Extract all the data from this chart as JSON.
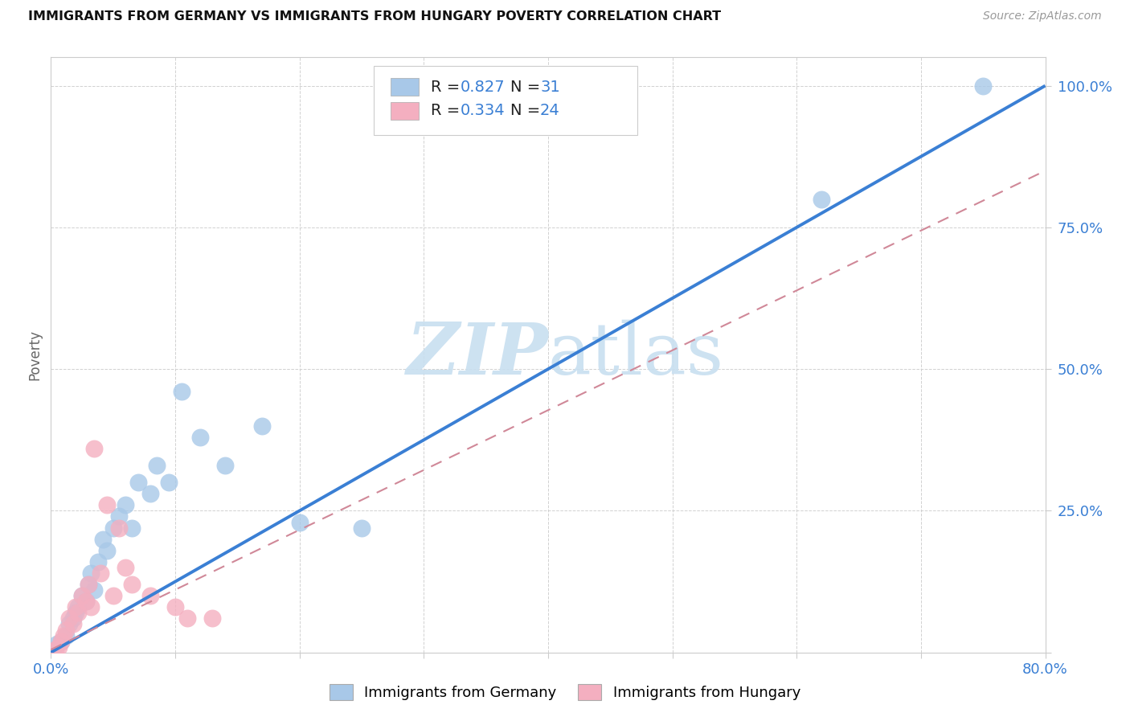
{
  "title": "IMMIGRANTS FROM GERMANY VS IMMIGRANTS FROM HUNGARY POVERTY CORRELATION CHART",
  "source": "Source: ZipAtlas.com",
  "ylabel": "Poverty",
  "xlim": [
    0.0,
    0.8
  ],
  "ylim": [
    0.0,
    1.05
  ],
  "xtick_positions": [
    0.0,
    0.1,
    0.2,
    0.3,
    0.4,
    0.5,
    0.6,
    0.7,
    0.8
  ],
  "xticklabels": [
    "0.0%",
    "",
    "",
    "",
    "",
    "",
    "",
    "",
    "80.0%"
  ],
  "ytick_positions": [
    0.0,
    0.25,
    0.5,
    0.75,
    1.0
  ],
  "yticklabels": [
    "",
    "25.0%",
    "50.0%",
    "75.0%",
    "100.0%"
  ],
  "germany_scatter_color": "#a8c8e8",
  "hungary_scatter_color": "#f4afc0",
  "germany_line_color": "#3a7fd4",
  "hungary_line_color": "#d08898",
  "legend_text_color": "#3a7fd4",
  "tick_color": "#3a7fd4",
  "grid_color": "#cccccc",
  "watermark_zip_color": "#c8dff0",
  "watermark_atlas_color": "#c8dff0",
  "germany_R": "0.827",
  "germany_N": "31",
  "hungary_R": "0.334",
  "hungary_N": "24",
  "germany_label": "Immigrants from Germany",
  "hungary_label": "Immigrants from Hungary",
  "germany_line_x": [
    0.0,
    0.8
  ],
  "germany_line_y": [
    0.0,
    1.0
  ],
  "hungary_line_x": [
    0.0,
    0.8
  ],
  "hungary_line_y": [
    0.005,
    0.85
  ],
  "germany_points": [
    [
      0.005,
      0.015
    ],
    [
      0.008,
      0.02
    ],
    [
      0.012,
      0.03
    ],
    [
      0.015,
      0.05
    ],
    [
      0.018,
      0.06
    ],
    [
      0.02,
      0.07
    ],
    [
      0.022,
      0.08
    ],
    [
      0.025,
      0.1
    ],
    [
      0.028,
      0.09
    ],
    [
      0.03,
      0.12
    ],
    [
      0.032,
      0.14
    ],
    [
      0.035,
      0.11
    ],
    [
      0.038,
      0.16
    ],
    [
      0.042,
      0.2
    ],
    [
      0.045,
      0.18
    ],
    [
      0.05,
      0.22
    ],
    [
      0.055,
      0.24
    ],
    [
      0.06,
      0.26
    ],
    [
      0.065,
      0.22
    ],
    [
      0.07,
      0.3
    ],
    [
      0.08,
      0.28
    ],
    [
      0.085,
      0.33
    ],
    [
      0.095,
      0.3
    ],
    [
      0.105,
      0.46
    ],
    [
      0.12,
      0.38
    ],
    [
      0.14,
      0.33
    ],
    [
      0.17,
      0.4
    ],
    [
      0.2,
      0.23
    ],
    [
      0.25,
      0.22
    ],
    [
      0.62,
      0.8
    ],
    [
      0.75,
      1.0
    ]
  ],
  "hungary_points": [
    [
      0.004,
      0.005
    ],
    [
      0.006,
      0.01
    ],
    [
      0.008,
      0.02
    ],
    [
      0.01,
      0.03
    ],
    [
      0.012,
      0.04
    ],
    [
      0.015,
      0.06
    ],
    [
      0.018,
      0.05
    ],
    [
      0.02,
      0.08
    ],
    [
      0.022,
      0.07
    ],
    [
      0.025,
      0.1
    ],
    [
      0.028,
      0.09
    ],
    [
      0.03,
      0.12
    ],
    [
      0.032,
      0.08
    ],
    [
      0.035,
      0.36
    ],
    [
      0.04,
      0.14
    ],
    [
      0.045,
      0.26
    ],
    [
      0.05,
      0.1
    ],
    [
      0.055,
      0.22
    ],
    [
      0.06,
      0.15
    ],
    [
      0.065,
      0.12
    ],
    [
      0.08,
      0.1
    ],
    [
      0.1,
      0.08
    ],
    [
      0.11,
      0.06
    ],
    [
      0.13,
      0.06
    ]
  ]
}
